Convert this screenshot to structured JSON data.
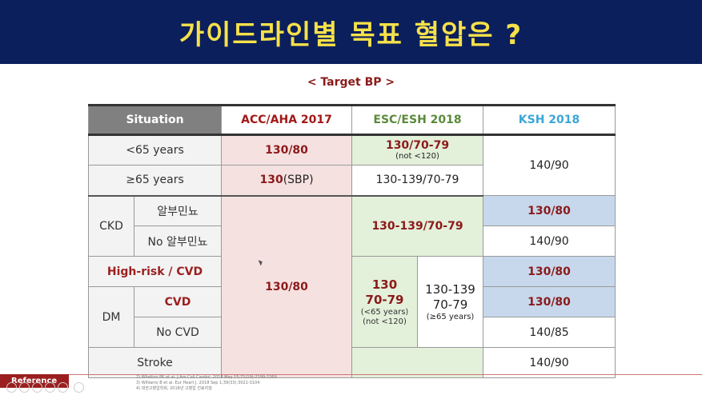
{
  "header": {
    "title": "가이드라인별 목표 혈압은 ?"
  },
  "subtitle": "< Target BP >",
  "table": {
    "headers": {
      "situation": "Situation",
      "acc": "ACC/AHA 2017",
      "esc": "ESC/ESH 2018",
      "ksh": "KSH 2018"
    },
    "rows": {
      "under65": {
        "label": "<65 years",
        "acc": "130/80",
        "esc": "130/70-79",
        "esc_note": "(not <120)",
        "ksh": "140/90"
      },
      "over65": {
        "label": "≥65 years",
        "acc_bold": "130",
        "acc_rest": "(SBP)",
        "esc": "130-139/70-79"
      },
      "ckd": {
        "group": "CKD",
        "sub1": "알부민뇨",
        "sub2": "No 알부민뇨",
        "esc": "130-139/70-79",
        "ksh1": "130/80",
        "ksh2": "140/90"
      },
      "highrisk": {
        "label": "High-risk / CVD",
        "ksh": "130/80"
      },
      "shared_acc": "130/80",
      "dm": {
        "group": "DM",
        "sub1": "CVD",
        "sub2": "No CVD",
        "esc_left_1": "130",
        "esc_left_2": "70-79",
        "esc_left_note1": "(<65 years)",
        "esc_left_note2": "(not <120)",
        "esc_right_1": "130-139",
        "esc_right_2": "70-79",
        "esc_right_note": "(≥65 years)",
        "ksh1": "130/80",
        "ksh2": "140/85"
      },
      "stroke": {
        "label": "Stroke",
        "ksh": "140/90"
      }
    }
  },
  "footer": {
    "reference_label": "Reference",
    "refs": [
      "2) Whelton PK et al. J Am Coll Cardiol. 2018 May 15;71(19):2199-2269",
      "3) Williams B et al. Eur Heart J. 2018 Sep 1;39(33):3021-3104",
      "4) 대한고혈압학회, 2018년 고혈압 진료지침"
    ]
  },
  "colors": {
    "header_bg": "#0b1f5c",
    "title": "#f6e14a",
    "acc_red": "#a31818",
    "esc_green": "#5a8a3a",
    "ksh_blue": "#3aa6d8",
    "pink_fill": "#f6e1e1",
    "green_fill": "#e3f0da",
    "blue_fill": "#c7d8ec"
  }
}
